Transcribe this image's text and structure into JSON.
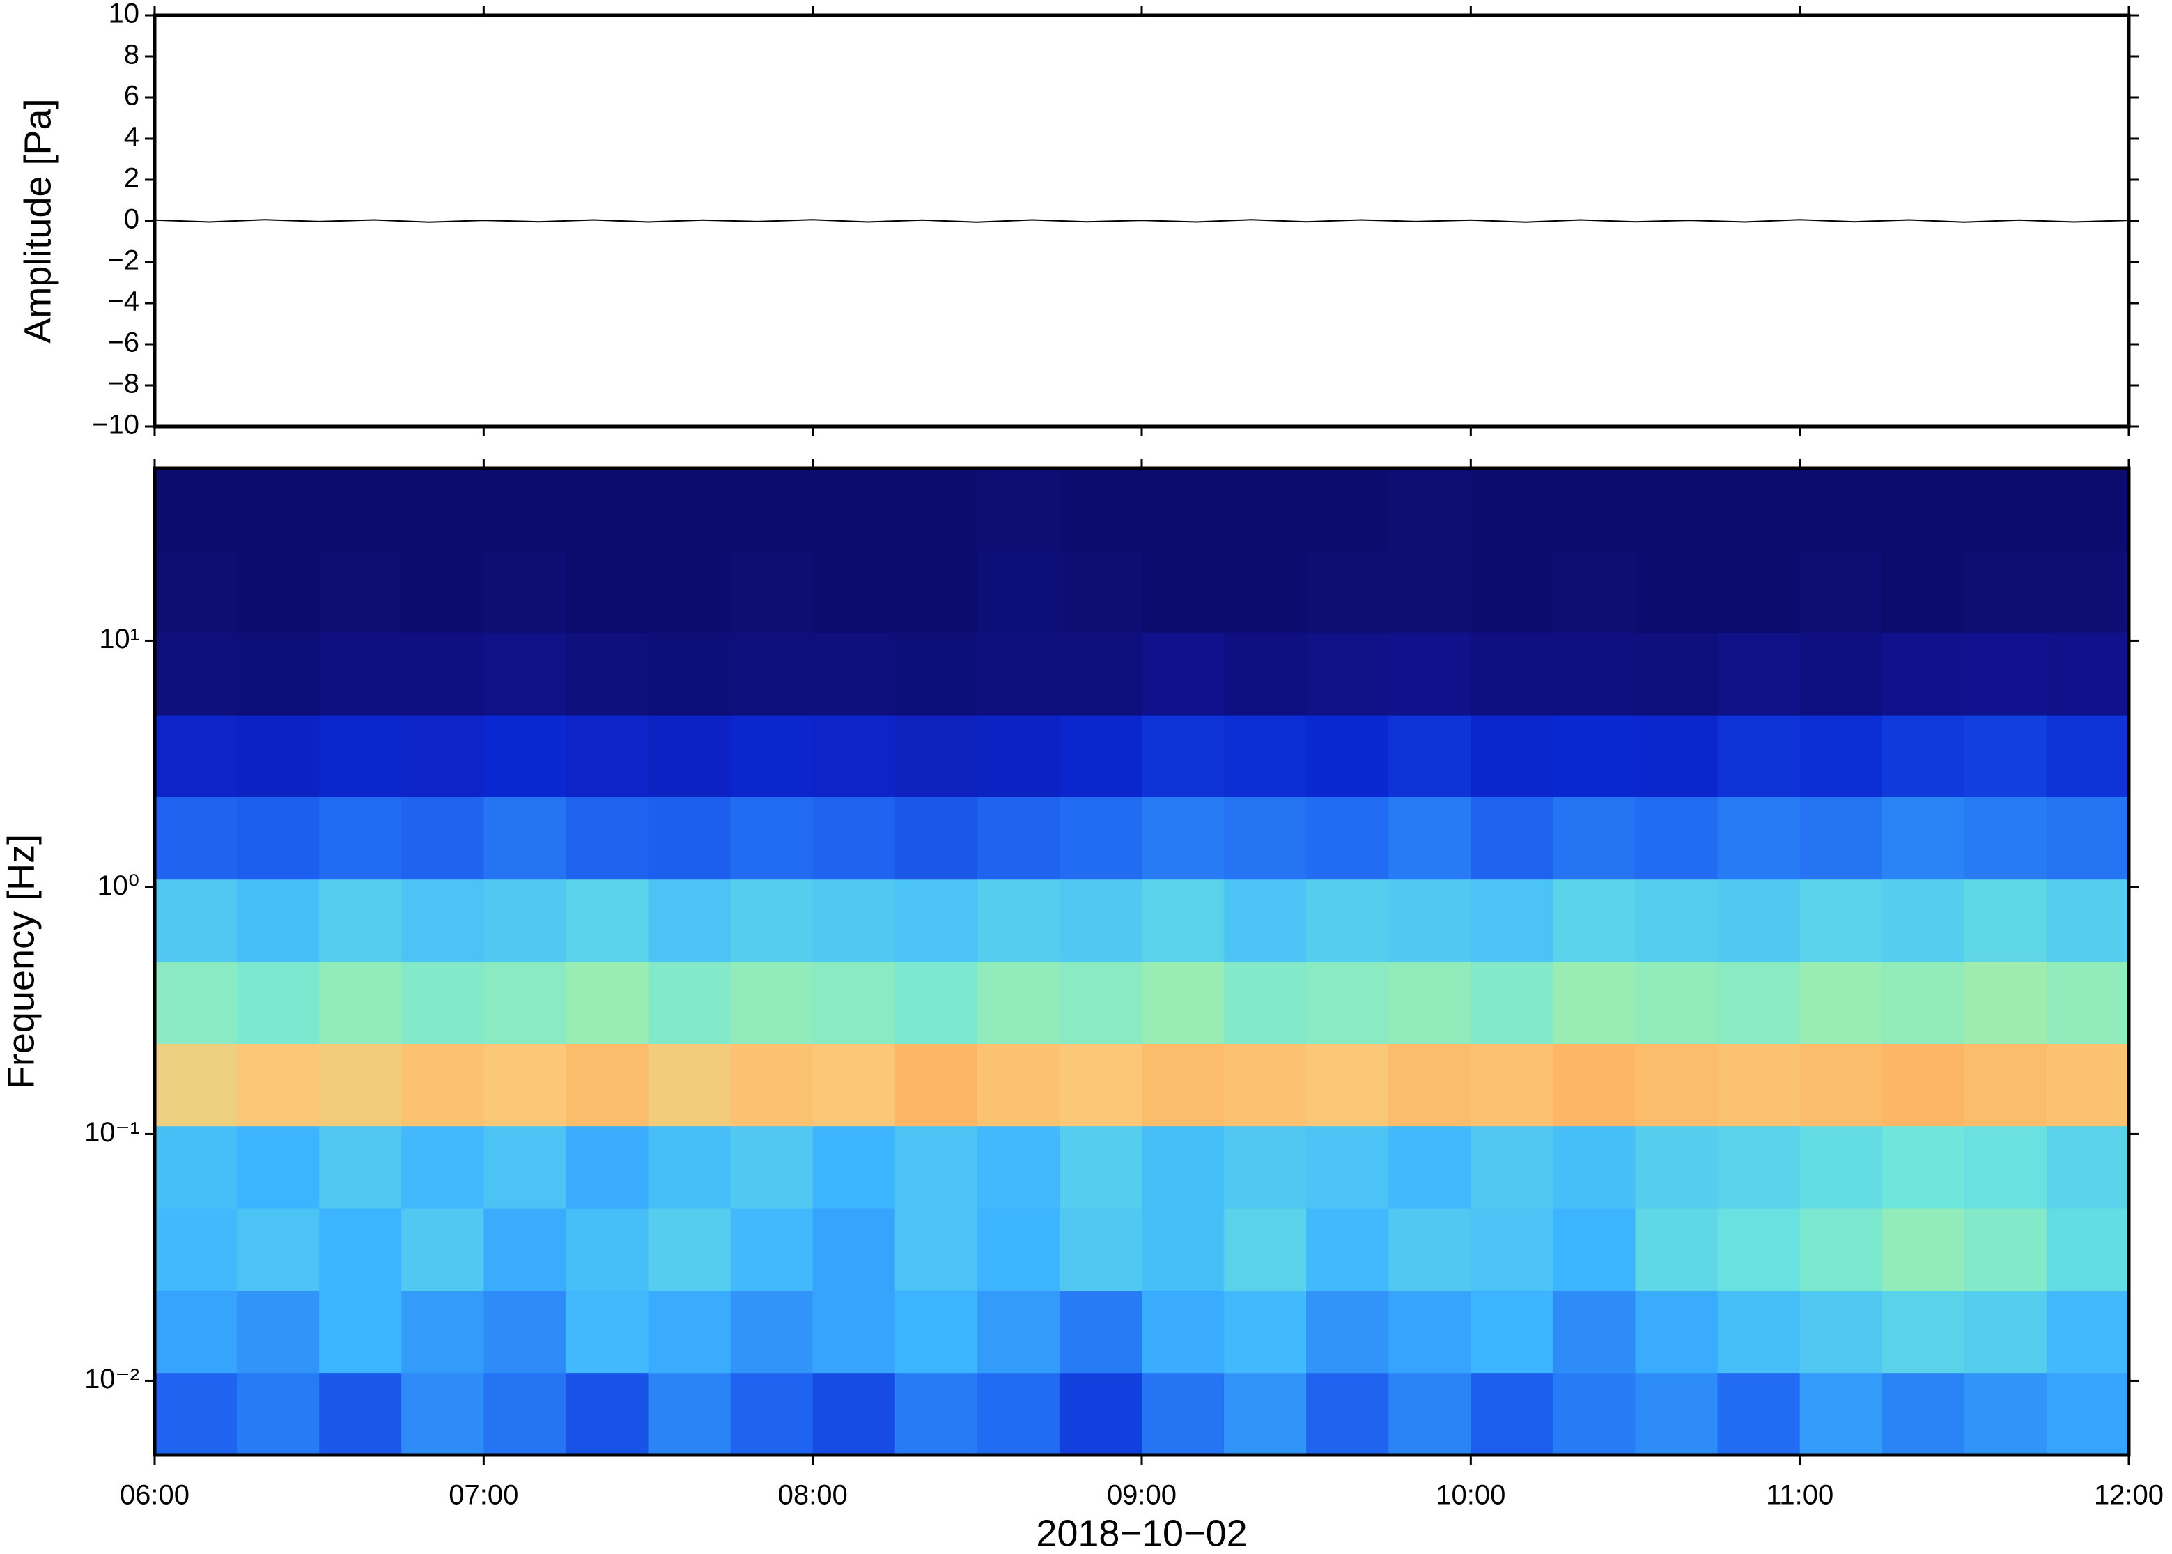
{
  "chart_data": [
    {
      "type": "line",
      "ylabel": "Amplitude [Pa]",
      "xlim": [
        "06:00",
        "12:00"
      ],
      "xticks": [
        "06:00",
        "07:00",
        "08:00",
        "09:00",
        "10:00",
        "11:00",
        "12:00"
      ],
      "ylim": [
        -10,
        10
      ],
      "yticks": [
        {
          "value": -10,
          "label": "−10"
        },
        {
          "value": -8,
          "label": "−8"
        },
        {
          "value": -6,
          "label": "−6"
        },
        {
          "value": -4,
          "label": "−4"
        },
        {
          "value": -2,
          "label": "−2"
        },
        0,
        2,
        4,
        6,
        8,
        10
      ],
      "color": "#000000",
      "x": [
        "06:00",
        "06:10",
        "06:20",
        "06:30",
        "06:40",
        "06:50",
        "07:00",
        "07:10",
        "07:20",
        "07:30",
        "07:40",
        "07:50",
        "08:00",
        "08:10",
        "08:20",
        "08:30",
        "08:40",
        "08:50",
        "09:00",
        "09:10",
        "09:20",
        "09:30",
        "09:40",
        "09:50",
        "10:00",
        "10:10",
        "10:20",
        "10:30",
        "10:40",
        "10:50",
        "11:00",
        "11:10",
        "11:20",
        "11:30",
        "11:40",
        "11:50",
        "12:00"
      ],
      "values": [
        0.04,
        -0.05,
        0.06,
        -0.03,
        0.05,
        -0.06,
        0.03,
        -0.04,
        0.05,
        -0.05,
        0.04,
        -0.03,
        0.06,
        -0.05,
        0.04,
        -0.06,
        0.05,
        -0.04,
        0.03,
        -0.05,
        0.06,
        -0.04,
        0.05,
        -0.03,
        0.04,
        -0.06,
        0.05,
        -0.04,
        0.03,
        -0.05,
        0.06,
        -0.04,
        0.05,
        -0.06,
        0.04,
        -0.05,
        0.03
      ]
    },
    {
      "type": "heatmap",
      "ylabel": "Frequency [Hz]",
      "xlabel": "2018−10−02",
      "xlim": [
        "06:00",
        "12:00"
      ],
      "xticks": [
        "06:00",
        "07:00",
        "08:00",
        "09:00",
        "10:00",
        "11:00",
        "12:00"
      ],
      "ylog": true,
      "ylim": [
        0.005,
        50
      ],
      "yticks": [
        {
          "value": 0.01,
          "label": "10⁻²"
        },
        {
          "value": 0.1,
          "label": "10⁻¹"
        },
        {
          "value": 1,
          "label": "10⁰"
        },
        {
          "value": 10,
          "label": "10¹"
        }
      ],
      "x_bins": [
        "06:00",
        "06:15",
        "06:30",
        "06:45",
        "07:00",
        "07:15",
        "07:30",
        "07:45",
        "08:00",
        "08:15",
        "08:30",
        "08:45",
        "09:00",
        "09:15",
        "09:30",
        "09:45",
        "10:00",
        "10:15",
        "10:30",
        "10:45",
        "11:00",
        "11:15",
        "11:30",
        "11:45",
        "12:00"
      ],
      "y_bins": [
        0.005,
        0.0108,
        0.0233,
        0.05,
        0.108,
        0.233,
        0.5,
        1.08,
        2.33,
        5,
        10.8,
        23.3,
        50
      ],
      "zlim": [
        0,
        1
      ],
      "colormap": [
        [
          0,
          "#0c0c6e"
        ],
        [
          0.1,
          "#1414a0"
        ],
        [
          0.2,
          "#0a28d2"
        ],
        [
          0.3,
          "#1e64f0"
        ],
        [
          0.4,
          "#3cb4ff"
        ],
        [
          0.5,
          "#6ee6dc"
        ],
        [
          0.6,
          "#b4f09a"
        ],
        [
          0.7,
          "#fac878"
        ],
        [
          0.8,
          "#ff8c3c"
        ],
        [
          1,
          "#c81e1e"
        ]
      ],
      "z": [
        [
          0.3,
          0.33,
          0.28,
          0.35,
          0.32,
          0.27,
          0.34,
          0.3,
          0.26,
          0.33,
          0.31,
          0.24,
          0.32,
          0.36,
          0.3,
          0.34,
          0.29,
          0.33,
          0.35,
          0.31,
          0.37,
          0.34,
          0.36,
          0.38
        ],
        [
          0.38,
          0.36,
          0.4,
          0.37,
          0.35,
          0.41,
          0.39,
          0.36,
          0.38,
          0.4,
          0.37,
          0.33,
          0.39,
          0.41,
          0.36,
          0.38,
          0.4,
          0.35,
          0.39,
          0.42,
          0.44,
          0.46,
          0.45,
          0.41
        ],
        [
          0.41,
          0.43,
          0.4,
          0.44,
          0.39,
          0.42,
          0.45,
          0.41,
          0.38,
          0.43,
          0.4,
          0.44,
          0.42,
          0.46,
          0.41,
          0.44,
          0.43,
          0.4,
          0.47,
          0.49,
          0.52,
          0.55,
          0.53,
          0.48
        ],
        [
          0.42,
          0.4,
          0.44,
          0.41,
          0.43,
          0.39,
          0.42,
          0.44,
          0.4,
          0.43,
          0.41,
          0.45,
          0.42,
          0.44,
          0.43,
          0.41,
          0.44,
          0.42,
          0.45,
          0.46,
          0.48,
          0.5,
          0.49,
          0.46
        ],
        [
          0.68,
          0.7,
          0.69,
          0.71,
          0.7,
          0.72,
          0.69,
          0.71,
          0.7,
          0.73,
          0.71,
          0.7,
          0.72,
          0.71,
          0.7,
          0.72,
          0.71,
          0.73,
          0.72,
          0.71,
          0.72,
          0.73,
          0.72,
          0.71
        ],
        [
          0.54,
          0.52,
          0.55,
          0.53,
          0.54,
          0.56,
          0.53,
          0.55,
          0.54,
          0.52,
          0.55,
          0.54,
          0.56,
          0.53,
          0.54,
          0.55,
          0.53,
          0.56,
          0.55,
          0.54,
          0.56,
          0.55,
          0.57,
          0.55
        ],
        [
          0.44,
          0.42,
          0.45,
          0.43,
          0.44,
          0.46,
          0.43,
          0.45,
          0.44,
          0.43,
          0.45,
          0.44,
          0.46,
          0.43,
          0.45,
          0.44,
          0.43,
          0.46,
          0.45,
          0.44,
          0.46,
          0.45,
          0.47,
          0.45
        ],
        [
          0.3,
          0.29,
          0.31,
          0.3,
          0.32,
          0.3,
          0.29,
          0.31,
          0.3,
          0.28,
          0.3,
          0.31,
          0.33,
          0.32,
          0.31,
          0.33,
          0.3,
          0.32,
          0.31,
          0.33,
          0.32,
          0.34,
          0.33,
          0.32
        ],
        [
          0.18,
          0.17,
          0.19,
          0.18,
          0.2,
          0.18,
          0.17,
          0.19,
          0.18,
          0.16,
          0.17,
          0.19,
          0.22,
          0.21,
          0.2,
          0.22,
          0.19,
          0.2,
          0.19,
          0.22,
          0.21,
          0.23,
          0.24,
          0.22
        ],
        [
          0.03,
          0.02,
          0.04,
          0.04,
          0.05,
          0.03,
          0.02,
          0.03,
          0.03,
          0.02,
          0.03,
          0.03,
          0.06,
          0.04,
          0.05,
          0.06,
          0.04,
          0.04,
          0.03,
          0.05,
          0.04,
          0.06,
          0.07,
          0.06
        ],
        [
          0.01,
          0,
          0.01,
          0,
          0.01,
          0,
          0,
          0.01,
          0,
          0,
          0.02,
          0.01,
          0,
          0,
          0.01,
          0.01,
          0,
          0.01,
          0,
          0,
          0.01,
          0,
          0.01,
          0.01
        ],
        [
          0,
          0,
          0,
          0,
          0,
          0,
          0,
          0,
          0,
          0,
          0.01,
          0,
          0,
          0,
          0,
          0.01,
          0,
          0,
          0,
          0,
          0,
          0,
          0,
          0
        ]
      ]
    }
  ]
}
